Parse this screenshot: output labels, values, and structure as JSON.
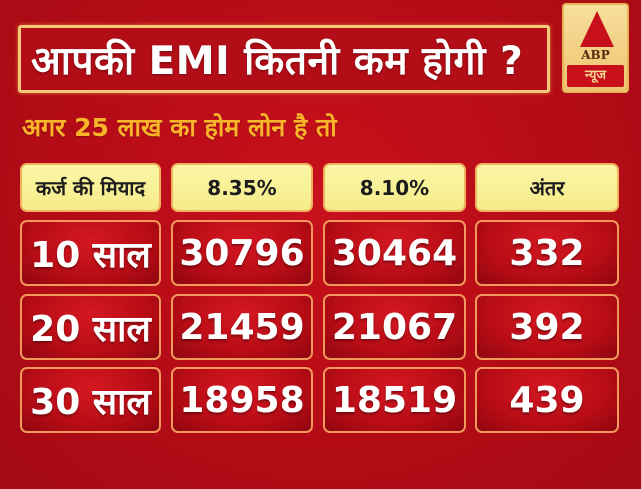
{
  "header": {
    "title": "आपकी EMI कितनी कम होगी ?",
    "subtitle": "अगर 25 लाख का होम लोन है तो"
  },
  "logo": {
    "brand": "ABP",
    "name": "न्यूज"
  },
  "colors": {
    "background": "#b50c17",
    "title_border": "#f5c97a",
    "subtitle": "#f9b52a",
    "header_cell": "#f6eb8a",
    "data_cell": "#c8121c",
    "text_light": "#ffffff"
  },
  "table": {
    "columns": [
      "कर्ज की मियाद",
      "8.35%",
      "8.10%",
      "अंतर"
    ],
    "rows": [
      [
        "10 साल",
        "30796",
        "30464",
        "332"
      ],
      [
        "20 साल",
        "21459",
        "21067",
        "392"
      ],
      [
        "30 साल",
        "18958",
        "18519",
        "439"
      ]
    ]
  },
  "chart_data": {
    "type": "table",
    "title": "आपकी EMI कितनी कम होगी ?",
    "subtitle": "अगर 25 लाख का होम लोन है तो",
    "columns": [
      "कर्ज की मियाद",
      "8.35%",
      "8.10%",
      "अंतर"
    ],
    "categories": [
      "10 साल",
      "20 साल",
      "30 साल"
    ],
    "series": [
      {
        "name": "8.35%",
        "values": [
          30796,
          21459,
          18958
        ]
      },
      {
        "name": "8.10%",
        "values": [
          30464,
          21067,
          18519
        ]
      },
      {
        "name": "अंतर",
        "values": [
          332,
          392,
          439
        ]
      }
    ]
  }
}
